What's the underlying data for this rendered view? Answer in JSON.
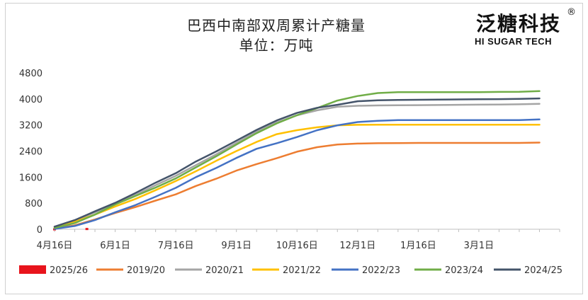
{
  "branding": {
    "name_cn": "泛糖科技",
    "registered_mark": "®",
    "name_en": "HI SUGAR TECH"
  },
  "chart_data": {
    "type": "line",
    "title": "巴西中南部双周累计产糖量",
    "subtitle": "单位：万吨",
    "xlabel": "",
    "ylabel": "",
    "ylim": [
      0,
      4800
    ],
    "yticks": [
      0,
      800,
      1600,
      2400,
      3200,
      4000,
      4800
    ],
    "xlim": [
      0,
      25
    ],
    "xticks": [
      {
        "label": "4月16日",
        "x": 0
      },
      {
        "label": "6月1日",
        "x": 3
      },
      {
        "label": "7月16日",
        "x": 6
      },
      {
        "label": "9月1日",
        "x": 9
      },
      {
        "label": "10月16日",
        "x": 12
      },
      {
        "label": "12月1日",
        "x": 15
      },
      {
        "label": "1月16日",
        "x": 18
      },
      {
        "label": "3月1日",
        "x": 21
      }
    ],
    "x_unit": "half-month periods from Apr 1 (x = 0 at first half of April)",
    "grid": false,
    "legend_position": "bottom",
    "series": [
      {
        "name": "2025/26",
        "color": "#e8141c",
        "type": "bar",
        "x": [
          0,
          1.6
        ],
        "y": [
          30,
          40
        ]
      },
      {
        "name": "2019/20",
        "color": "#ed7d31",
        "x": [
          0,
          1,
          2,
          3,
          4,
          5,
          6,
          7,
          8,
          9,
          10,
          11,
          12,
          13,
          14,
          15,
          16,
          17,
          18,
          19,
          20,
          21,
          22,
          23,
          24
        ],
        "y": [
          20,
          120,
          300,
          500,
          680,
          880,
          1070,
          1330,
          1550,
          1800,
          2000,
          2180,
          2380,
          2520,
          2600,
          2630,
          2640,
          2645,
          2650,
          2650,
          2650,
          2650,
          2650,
          2650,
          2660
        ]
      },
      {
        "name": "2020/21",
        "color": "#a5a5a5",
        "x": [
          0,
          1,
          2,
          3,
          4,
          5,
          6,
          7,
          8,
          9,
          10,
          11,
          12,
          13,
          14,
          15,
          16,
          17,
          18,
          19,
          20,
          21,
          22,
          23,
          24
        ],
        "y": [
          70,
          260,
          520,
          780,
          1050,
          1350,
          1640,
          1970,
          2300,
          2650,
          2990,
          3280,
          3500,
          3650,
          3760,
          3790,
          3800,
          3805,
          3810,
          3815,
          3820,
          3825,
          3830,
          3835,
          3850
        ]
      },
      {
        "name": "2021/22",
        "color": "#ffc000",
        "x": [
          0,
          1,
          2,
          3,
          4,
          5,
          6,
          7,
          8,
          9,
          10,
          11,
          12,
          13,
          14,
          15,
          16,
          17,
          18,
          19,
          20,
          21,
          22,
          23,
          24
        ],
        "y": [
          60,
          230,
          450,
          700,
          930,
          1200,
          1480,
          1780,
          2100,
          2400,
          2680,
          2920,
          3040,
          3130,
          3190,
          3205,
          3210,
          3210,
          3210,
          3210,
          3210,
          3210,
          3210,
          3210,
          3210
        ]
      },
      {
        "name": "2022/23",
        "color": "#4472c4",
        "x": [
          0,
          1,
          2,
          3,
          4,
          5,
          6,
          7,
          8,
          9,
          10,
          11,
          12,
          13,
          14,
          15,
          16,
          17,
          18,
          19,
          20,
          21,
          22,
          23,
          24
        ],
        "y": [
          10,
          100,
          280,
          520,
          740,
          1000,
          1270,
          1600,
          1880,
          2190,
          2470,
          2640,
          2830,
          3040,
          3190,
          3290,
          3330,
          3350,
          3350,
          3350,
          3350,
          3350,
          3350,
          3350,
          3370
        ]
      },
      {
        "name": "2023/24",
        "color": "#70ad47",
        "x": [
          0,
          1,
          2,
          3,
          4,
          5,
          6,
          7,
          8,
          9,
          10,
          11,
          12,
          13,
          14,
          15,
          16,
          17,
          18,
          19,
          20,
          21,
          22,
          23,
          24
        ],
        "y": [
          40,
          190,
          450,
          760,
          1020,
          1280,
          1560,
          1900,
          2240,
          2600,
          2950,
          3250,
          3500,
          3720,
          3950,
          4090,
          4180,
          4210,
          4210,
          4210,
          4210,
          4210,
          4215,
          4220,
          4240
        ]
      },
      {
        "name": "2024/25",
        "color": "#44546a",
        "x": [
          0,
          1,
          2,
          3,
          4,
          5,
          6,
          7,
          8,
          9,
          10,
          11,
          12,
          13,
          14,
          15,
          16,
          17,
          18,
          19,
          20,
          21,
          22,
          23,
          24
        ],
        "y": [
          80,
          280,
          550,
          810,
          1110,
          1430,
          1720,
          2080,
          2390,
          2720,
          3050,
          3340,
          3570,
          3730,
          3820,
          3930,
          3960,
          3970,
          3975,
          3980,
          3985,
          3990,
          3995,
          4000,
          4015
        ]
      }
    ]
  }
}
